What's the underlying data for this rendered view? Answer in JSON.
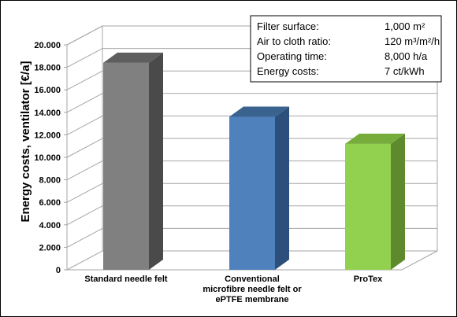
{
  "chart_data": {
    "type": "bar",
    "style": "3d",
    "categories": [
      [
        "Standard needle felt"
      ],
      [
        "Conventional",
        "microfibre needle felt or",
        "ePTFE membrane"
      ],
      [
        "ProTex"
      ]
    ],
    "values": [
      18400,
      13600,
      11200
    ],
    "colors": {
      "bars": [
        "#808080",
        "#4f81bd",
        "#92d050"
      ],
      "bar_sides": [
        "#4a4a4a",
        "#2d4f7c",
        "#5c8a2c"
      ],
      "bar_tops": [
        "#5e5e5e",
        "#3a628f",
        "#76ad3a"
      ],
      "grid": "#a6a6a6"
    },
    "ylabel": "Energy costs, ventilator [€/a]",
    "ylim": [
      0,
      20000
    ],
    "yticks": [
      "0",
      "2.000",
      "4.000",
      "6.000",
      "8.000",
      "10.000",
      "12.000",
      "14.000",
      "16.000",
      "18.000",
      "20.000"
    ],
    "grid": true,
    "info_box": [
      {
        "label": "Filter surface:",
        "value": "1,000 m²"
      },
      {
        "label": "Air to cloth ratio:",
        "value": "120 m³/m²/h"
      },
      {
        "label": "Operating time:",
        "value": "8,000 h/a"
      },
      {
        "label": "Energy costs:",
        "value": "7 ct/kWh"
      }
    ]
  }
}
